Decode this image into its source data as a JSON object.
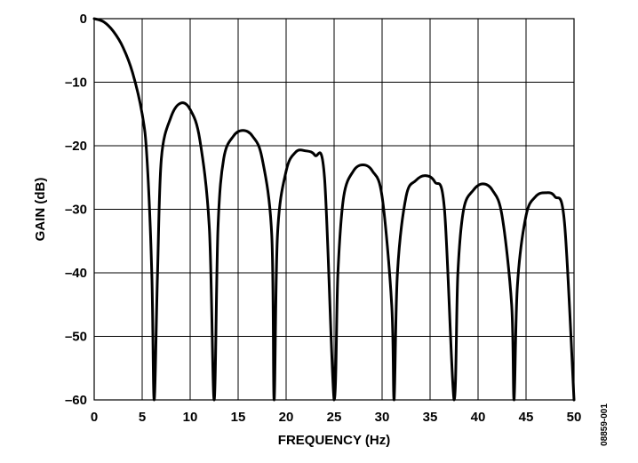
{
  "chart_data": {
    "type": "line",
    "title": "",
    "xlabel": "FREQUENCY (Hz)",
    "ylabel": "GAIN (dB)",
    "xlim": [
      0,
      50
    ],
    "ylim": [
      -60,
      0
    ],
    "x_ticks": [
      0,
      5,
      10,
      15,
      20,
      25,
      30,
      35,
      40,
      45,
      50
    ],
    "y_ticks": [
      0,
      -10,
      -20,
      -30,
      -40,
      -50,
      -60
    ],
    "x_tick_labels": [
      "0",
      "5",
      "10",
      "15",
      "20",
      "25",
      "30",
      "35",
      "40",
      "45",
      "50"
    ],
    "y_tick_labels": [
      "0",
      "–10",
      "–20",
      "–30",
      "–40",
      "–50",
      "–60"
    ],
    "grid": true,
    "line_color": "#000000",
    "series": [
      {
        "x": [
          0,
          1,
          2,
          3,
          4,
          5,
          5.5,
          6,
          6.25,
          6.6,
          7,
          8,
          9,
          10,
          11,
          12,
          12.5,
          12.9,
          13.5,
          14.5,
          15.5,
          16.5,
          17.5,
          18.5,
          18.75,
          19.1,
          20,
          21,
          22,
          23,
          24,
          25,
          25.4,
          26,
          27,
          28,
          29,
          30,
          31,
          31.25,
          31.6,
          32.5,
          33.5,
          34.5,
          35.5,
          36.5,
          37.5,
          37.9,
          38.5,
          39.5,
          40.5,
          41.5,
          42.5,
          43.5,
          43.75,
          44.1,
          45,
          46,
          47,
          48,
          49,
          50
        ],
        "values": [
          0,
          -0.5,
          -2,
          -4.5,
          -8.5,
          -15,
          -22,
          -40,
          -60,
          -40,
          -22,
          -15.5,
          -13.3,
          -14.3,
          -19,
          -33,
          -60,
          -33,
          -22,
          -18.5,
          -17.6,
          -18.5,
          -22,
          -34,
          -60,
          -34,
          -24,
          -21,
          -20.8,
          -21.5,
          -25,
          -60,
          -40,
          -28,
          -24,
          -23,
          -24,
          -28,
          -45,
          -60,
          -40,
          -28,
          -25.5,
          -24.7,
          -25.7,
          -30,
          -60,
          -40,
          -30,
          -27,
          -26,
          -27,
          -31,
          -45,
          -60,
          -42,
          -31,
          -28,
          -27.4,
          -28,
          -32,
          -60
        ]
      }
    ],
    "annotations": [
      "08859-001"
    ]
  }
}
